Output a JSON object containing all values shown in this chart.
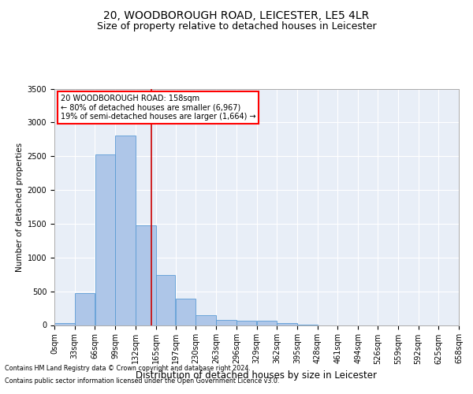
{
  "title": "20, WOODBOROUGH ROAD, LEICESTER, LE5 4LR",
  "subtitle": "Size of property relative to detached houses in Leicester",
  "xlabel": "Distribution of detached houses by size in Leicester",
  "ylabel": "Number of detached properties",
  "footnote1": "Contains HM Land Registry data © Crown copyright and database right 2024.",
  "footnote2": "Contains public sector information licensed under the Open Government Licence v3.0.",
  "annotation_line1": "20 WOODBOROUGH ROAD: 158sqm",
  "annotation_line2": "← 80% of detached houses are smaller (6,967)",
  "annotation_line3": "19% of semi-detached houses are larger (1,664) →",
  "bar_color": "#aec6e8",
  "bar_edge_color": "#5b9bd5",
  "vline_color": "#cc0000",
  "vline_x": 158,
  "bin_edges": [
    0,
    33,
    66,
    99,
    132,
    165,
    197,
    230,
    263,
    296,
    329,
    362,
    395,
    428,
    461,
    494,
    526,
    559,
    592,
    625,
    658
  ],
  "bar_heights": [
    30,
    470,
    2530,
    2810,
    1480,
    740,
    390,
    150,
    80,
    60,
    60,
    30,
    10,
    0,
    0,
    0,
    0,
    0,
    0,
    0
  ],
  "ylim": [
    0,
    3500
  ],
  "yticks": [
    0,
    500,
    1000,
    1500,
    2000,
    2500,
    3000,
    3500
  ],
  "bg_color": "#e8eef7",
  "grid_color": "#ffffff",
  "title_fontsize": 10,
  "subtitle_fontsize": 9,
  "xlabel_fontsize": 8.5,
  "ylabel_fontsize": 7.5,
  "tick_fontsize": 7,
  "annotation_fontsize": 7,
  "footnote_fontsize": 5.8
}
